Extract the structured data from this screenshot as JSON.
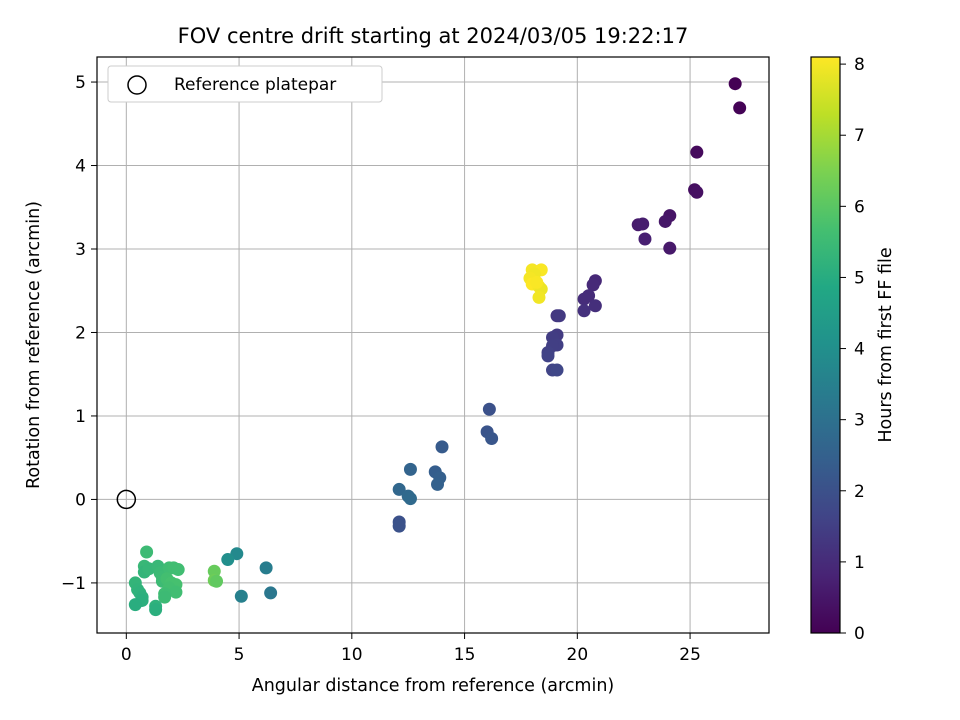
{
  "chart_data": {
    "type": "scatter",
    "title": "FOV centre drift starting at 2024/03/05 19:22:17",
    "xlabel": "Angular distance from reference (arcmin)",
    "ylabel": "Rotation from reference (arcmin)",
    "xlim": [
      -1.3,
      28.5
    ],
    "ylim": [
      -1.6,
      5.3
    ],
    "xticks": [
      0,
      5,
      10,
      15,
      20,
      25
    ],
    "yticks": [
      -1,
      0,
      1,
      2,
      3,
      4,
      5
    ],
    "grid": true,
    "legend": {
      "position": "top-left",
      "entries": [
        "Reference platepar"
      ]
    },
    "reference_point": {
      "x": 0,
      "y": 0,
      "label": "Reference platepar"
    },
    "colorbar": {
      "label": "Hours from first FF file",
      "colormap": "viridis",
      "range": [
        0,
        8.1
      ],
      "ticks": [
        0,
        1,
        2,
        3,
        4,
        5,
        6,
        7,
        8
      ]
    },
    "points": [
      {
        "x": 27.0,
        "y": 4.98,
        "c": 0.0
      },
      {
        "x": 27.2,
        "y": 4.69,
        "c": 0.05
      },
      {
        "x": 25.3,
        "y": 4.16,
        "c": 0.2
      },
      {
        "x": 25.2,
        "y": 3.71,
        "c": 0.3
      },
      {
        "x": 25.3,
        "y": 3.68,
        "c": 0.35
      },
      {
        "x": 24.1,
        "y": 3.4,
        "c": 0.45
      },
      {
        "x": 23.9,
        "y": 3.33,
        "c": 0.5
      },
      {
        "x": 24.1,
        "y": 3.01,
        "c": 0.55
      },
      {
        "x": 22.7,
        "y": 3.29,
        "c": 0.6
      },
      {
        "x": 22.9,
        "y": 3.3,
        "c": 0.65
      },
      {
        "x": 23.0,
        "y": 3.12,
        "c": 0.7
      },
      {
        "x": 20.8,
        "y": 2.62,
        "c": 0.9
      },
      {
        "x": 20.7,
        "y": 2.57,
        "c": 0.95
      },
      {
        "x": 20.5,
        "y": 2.44,
        "c": 1.0
      },
      {
        "x": 20.3,
        "y": 2.4,
        "c": 1.05
      },
      {
        "x": 20.8,
        "y": 2.32,
        "c": 1.1
      },
      {
        "x": 20.3,
        "y": 2.26,
        "c": 1.15
      },
      {
        "x": 19.1,
        "y": 2.2,
        "c": 1.3
      },
      {
        "x": 19.2,
        "y": 2.2,
        "c": 1.35
      },
      {
        "x": 19.1,
        "y": 1.97,
        "c": 1.4
      },
      {
        "x": 18.9,
        "y": 1.94,
        "c": 1.45
      },
      {
        "x": 19.1,
        "y": 1.85,
        "c": 1.5
      },
      {
        "x": 18.9,
        "y": 1.84,
        "c": 1.5
      },
      {
        "x": 18.7,
        "y": 1.76,
        "c": 1.55
      },
      {
        "x": 18.7,
        "y": 1.72,
        "c": 1.6
      },
      {
        "x": 18.9,
        "y": 1.55,
        "c": 1.65
      },
      {
        "x": 19.1,
        "y": 1.55,
        "c": 1.7
      },
      {
        "x": 16.1,
        "y": 1.08,
        "c": 2.0
      },
      {
        "x": 16.0,
        "y": 0.81,
        "c": 2.1
      },
      {
        "x": 16.2,
        "y": 0.73,
        "c": 2.15
      },
      {
        "x": 14.0,
        "y": 0.63,
        "c": 2.3
      },
      {
        "x": 13.7,
        "y": 0.33,
        "c": 2.4
      },
      {
        "x": 13.9,
        "y": 0.26,
        "c": 2.45
      },
      {
        "x": 13.8,
        "y": 0.18,
        "c": 2.5
      },
      {
        "x": 12.6,
        "y": 0.36,
        "c": 2.6
      },
      {
        "x": 12.1,
        "y": 0.12,
        "c": 2.7
      },
      {
        "x": 12.5,
        "y": 0.04,
        "c": 2.75
      },
      {
        "x": 12.6,
        "y": 0.01,
        "c": 2.8
      },
      {
        "x": 12.1,
        "y": -0.27,
        "c": 2.0
      },
      {
        "x": 12.1,
        "y": -0.32,
        "c": 2.05
      },
      {
        "x": 18.0,
        "y": 2.75,
        "c": 8.0
      },
      {
        "x": 18.4,
        "y": 2.75,
        "c": 8.05
      },
      {
        "x": 18.1,
        "y": 2.7,
        "c": 7.95
      },
      {
        "x": 17.9,
        "y": 2.65,
        "c": 8.0
      },
      {
        "x": 18.0,
        "y": 2.58,
        "c": 8.1
      },
      {
        "x": 18.3,
        "y": 2.55,
        "c": 8.0
      },
      {
        "x": 18.4,
        "y": 2.52,
        "c": 7.9
      },
      {
        "x": 18.2,
        "y": 2.6,
        "c": 8.05
      },
      {
        "x": 18.3,
        "y": 2.42,
        "c": 7.95
      },
      {
        "x": 6.4,
        "y": -1.12,
        "c": 3.2
      },
      {
        "x": 6.2,
        "y": -0.82,
        "c": 3.4
      },
      {
        "x": 5.1,
        "y": -1.16,
        "c": 3.5
      },
      {
        "x": 4.9,
        "y": -0.65,
        "c": 3.8
      },
      {
        "x": 4.5,
        "y": -0.72,
        "c": 4.0
      },
      {
        "x": 3.9,
        "y": -0.86,
        "c": 6.2
      },
      {
        "x": 3.9,
        "y": -0.97,
        "c": 6.3
      },
      {
        "x": 4.0,
        "y": -0.98,
        "c": 6.1
      },
      {
        "x": 0.9,
        "y": -0.63,
        "c": 5.5
      },
      {
        "x": 0.8,
        "y": -0.8,
        "c": 5.4
      },
      {
        "x": 0.8,
        "y": -0.87,
        "c": 5.3
      },
      {
        "x": 1.0,
        "y": -0.83,
        "c": 5.35
      },
      {
        "x": 1.4,
        "y": -0.8,
        "c": 5.4
      },
      {
        "x": 1.5,
        "y": -0.88,
        "c": 5.45
      },
      {
        "x": 1.6,
        "y": -0.93,
        "c": 5.5
      },
      {
        "x": 1.6,
        "y": -0.98,
        "c": 5.5
      },
      {
        "x": 1.9,
        "y": -0.82,
        "c": 5.55
      },
      {
        "x": 2.1,
        "y": -0.82,
        "c": 5.6
      },
      {
        "x": 2.3,
        "y": -0.84,
        "c": 5.6
      },
      {
        "x": 1.8,
        "y": -0.95,
        "c": 5.65
      },
      {
        "x": 2.0,
        "y": -1.0,
        "c": 5.7
      },
      {
        "x": 2.2,
        "y": -1.02,
        "c": 5.7
      },
      {
        "x": 1.9,
        "y": -1.06,
        "c": 5.65
      },
      {
        "x": 2.2,
        "y": -1.11,
        "c": 5.6
      },
      {
        "x": 1.7,
        "y": -1.13,
        "c": 5.55
      },
      {
        "x": 1.7,
        "y": -1.17,
        "c": 5.5
      },
      {
        "x": 1.3,
        "y": -1.28,
        "c": 5.2
      },
      {
        "x": 1.3,
        "y": -1.32,
        "c": 5.1
      },
      {
        "x": 0.4,
        "y": -1.0,
        "c": 5.3
      },
      {
        "x": 0.5,
        "y": -1.08,
        "c": 5.25
      },
      {
        "x": 0.6,
        "y": -1.12,
        "c": 5.2
      },
      {
        "x": 0.7,
        "y": -1.17,
        "c": 5.15
      },
      {
        "x": 0.7,
        "y": -1.21,
        "c": 5.1
      },
      {
        "x": 0.4,
        "y": -1.26,
        "c": 5.05
      }
    ]
  }
}
